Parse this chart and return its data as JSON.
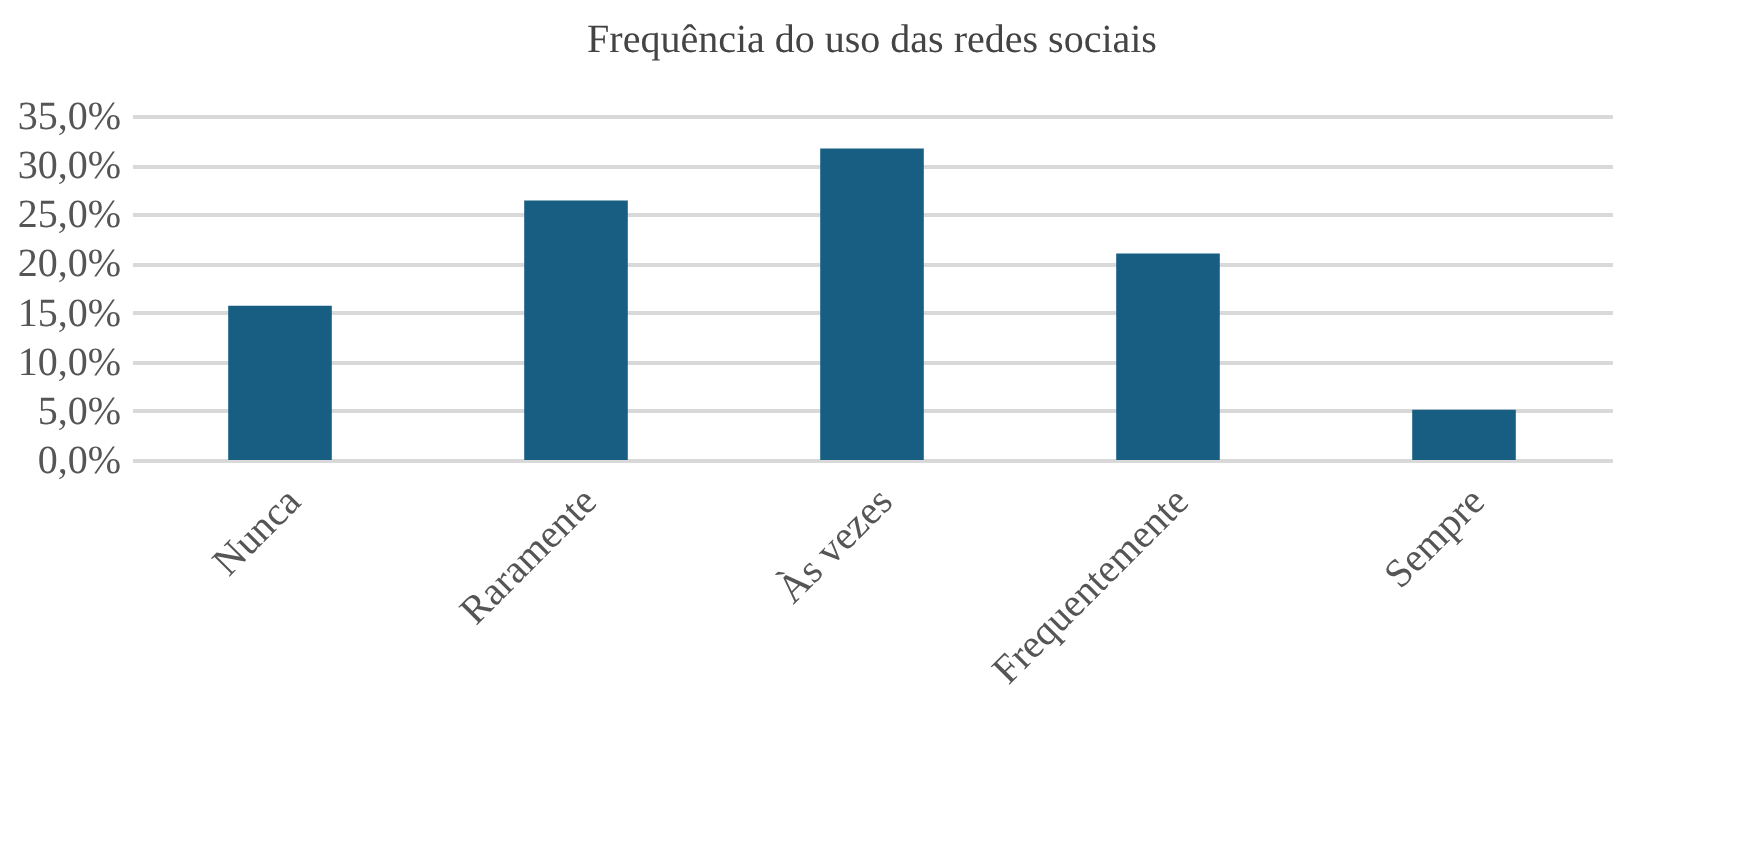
{
  "chart_data": {
    "type": "bar",
    "title": "Frequência  do uso das redes sociais",
    "categories": [
      "Nunca",
      "Raramente",
      "Às vezes",
      "Frequentemente",
      "Sempre"
    ],
    "values": [
      15.7,
      26.4,
      31.7,
      21.0,
      5.1
    ],
    "color": "#175e82",
    "ylim": [
      0,
      35
    ],
    "yticks": [
      {
        "value": 0,
        "label": "0,0%"
      },
      {
        "value": 5,
        "label": "5,0%"
      },
      {
        "value": 10,
        "label": "10,0%"
      },
      {
        "value": 15,
        "label": "15,0%"
      },
      {
        "value": 20,
        "label": "20,0%"
      },
      {
        "value": 25,
        "label": "25,0%"
      },
      {
        "value": 30,
        "label": "30,0%"
      },
      {
        "value": 35,
        "label": "35,0%"
      }
    ],
    "grid": "y"
  }
}
